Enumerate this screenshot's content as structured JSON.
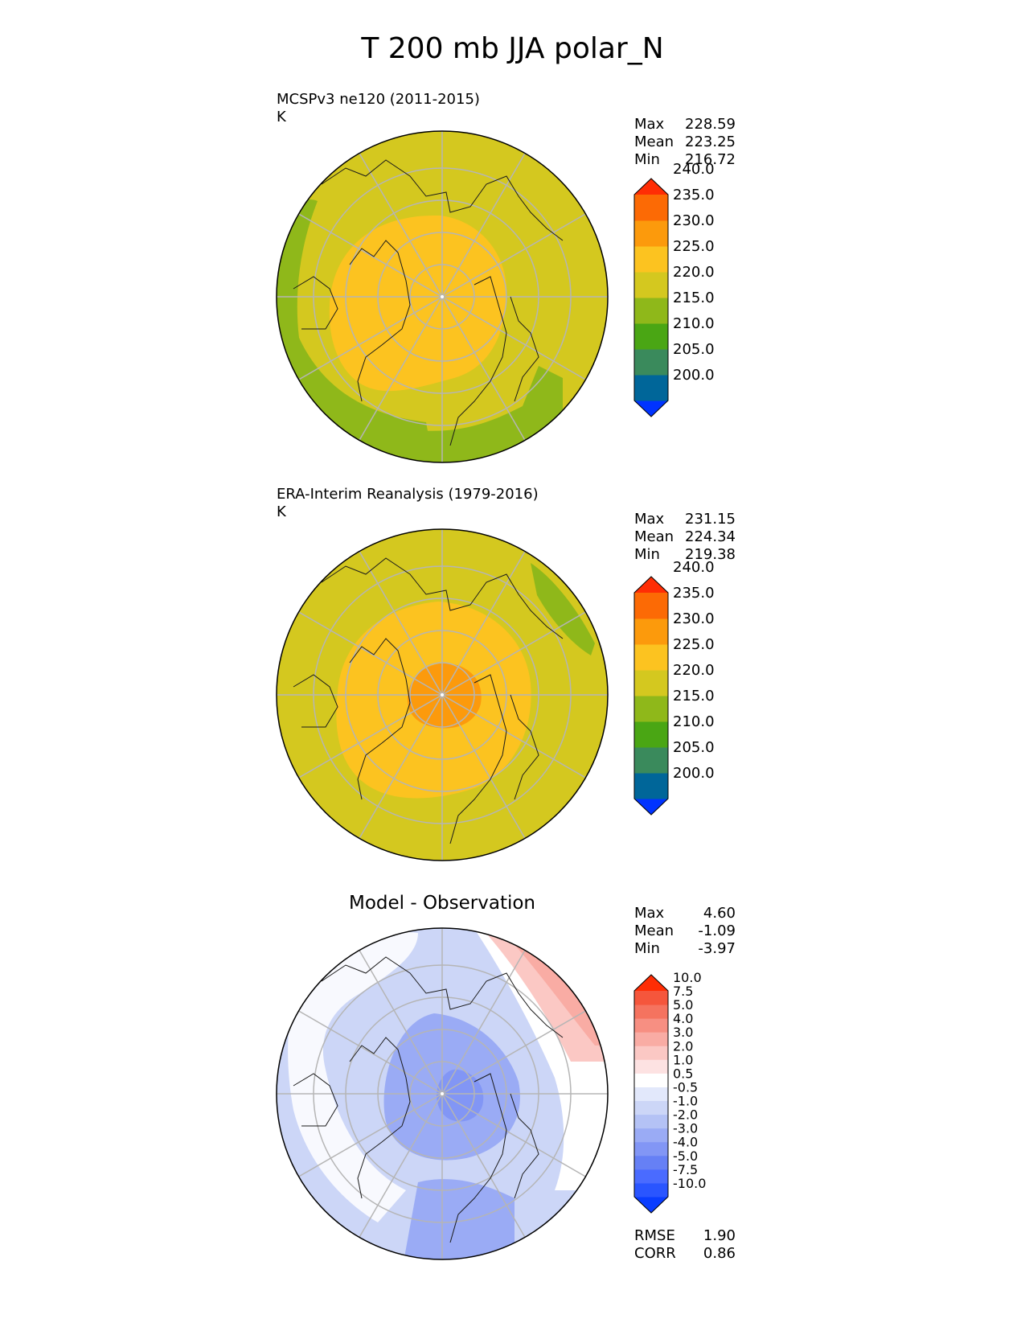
{
  "title": "T 200 mb JJA polar_N",
  "panels": [
    {
      "title_line1": "MCSPv3 ne120 (2011-2015)",
      "title_line2": "K",
      "stats": {
        "max_label": "Max",
        "max": "228.59",
        "mean_label": "Mean",
        "mean": "223.25",
        "min_label": "Min",
        "min": "216.72"
      },
      "colorbar": {
        "colors": [
          "#0033ff",
          "#006699",
          "#3a8a5c",
          "#4aa614",
          "#8fb81a",
          "#d4c81f",
          "#fcc320",
          "#fc9a0c",
          "#fc6a05",
          "#ff2d05"
        ],
        "labels": [
          "200.0",
          "205.0",
          "210.0",
          "215.0",
          "220.0",
          "225.0",
          "230.0",
          "235.0",
          "240.0"
        ]
      }
    },
    {
      "title_line1": "ERA-Interim Reanalysis (1979-2016)",
      "title_line2": "K",
      "stats": {
        "max_label": "Max",
        "max": "231.15",
        "mean_label": "Mean",
        "mean": "224.34",
        "min_label": "Min",
        "min": "219.38"
      },
      "colorbar": {
        "colors": [
          "#0033ff",
          "#006699",
          "#3a8a5c",
          "#4aa614",
          "#8fb81a",
          "#d4c81f",
          "#fcc320",
          "#fc9a0c",
          "#fc6a05",
          "#ff2d05"
        ],
        "labels": [
          "200.0",
          "205.0",
          "210.0",
          "215.0",
          "220.0",
          "225.0",
          "230.0",
          "235.0",
          "240.0"
        ]
      }
    },
    {
      "title": "Model - Observation",
      "stats": {
        "max_label": "Max",
        "max": "4.60",
        "mean_label": "Mean",
        "mean": "-1.09",
        "min_label": "Min",
        "min": "-3.97"
      },
      "metrics": {
        "rmse_label": "RMSE",
        "rmse": "1.90",
        "corr_label": "CORR",
        "corr": "0.86"
      },
      "colorbar": {
        "colors": [
          "#0a3dff",
          "#2a55ff",
          "#4a6bff",
          "#6680f5",
          "#8296f5",
          "#9aabf5",
          "#b4c2f5",
          "#ccd6f7",
          "#e2e8fb",
          "#ffffff",
          "#fde2e2",
          "#fbc8c4",
          "#f9aca4",
          "#f78f82",
          "#f5735f",
          "#f5563c",
          "#ff2d05"
        ],
        "labels": [
          "-10.0",
          "-7.5",
          "-5.0",
          "-4.0",
          "-3.0",
          "-2.0",
          "-1.0",
          "-0.5",
          "0.5",
          "1.0",
          "2.0",
          "3.0",
          "4.0",
          "5.0",
          "7.5",
          "10.0"
        ]
      }
    }
  ]
}
